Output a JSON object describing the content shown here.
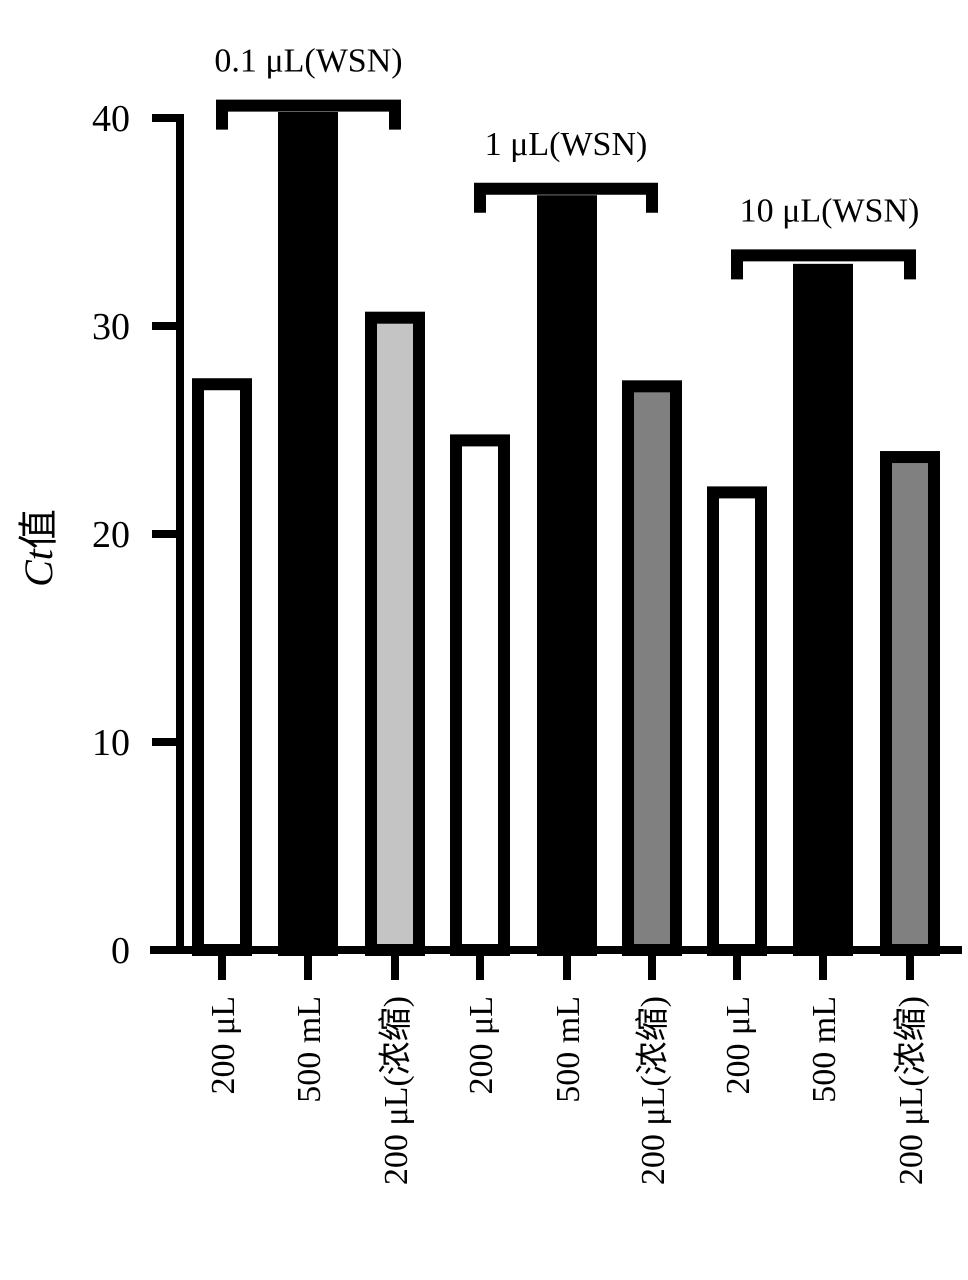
{
  "chart_data": {
    "type": "bar",
    "ylabel_prefix": "Ct",
    "ylabel_suffix": "值",
    "ylim": [
      0,
      40
    ],
    "yticks": [
      "0",
      "10",
      "20",
      "30",
      "40"
    ],
    "categories": [
      "200 μL",
      "500 mL",
      "200 μL(浓缩)",
      "200 μL",
      "500 mL",
      "200 μL(浓缩)",
      "200 μL",
      "500 mL",
      "200 μL(浓缩)"
    ],
    "values": [
      27.2,
      40.0,
      30.4,
      24.5,
      36.0,
      27.1,
      22.0,
      32.7,
      23.7
    ],
    "fills": [
      "#ffffff",
      "#000000",
      "#c4c4c4",
      "#ffffff",
      "#000000",
      "#808080",
      "#ffffff",
      "#000000",
      "#808080"
    ],
    "groups": [
      {
        "label": "0.1 μL(WSN)",
        "bracket_y": 40.5
      },
      {
        "label": "1 μL(WSN)",
        "bracket_y": 36.5
      },
      {
        "label": "10 μL(WSN)",
        "bracket_y": 33.3
      }
    ],
    "grid": false,
    "legend": "none"
  }
}
